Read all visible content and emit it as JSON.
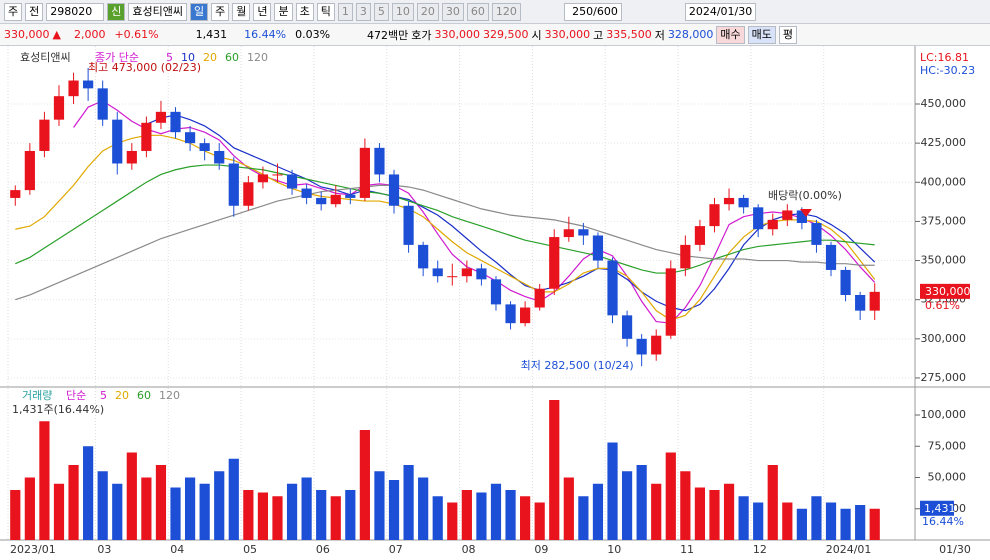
{
  "toolbar": {
    "row1": [
      "주",
      "전",
      "298020",
      "신",
      "효성티앤씨",
      "일",
      "주",
      "월",
      "년",
      "분",
      "초",
      "틱",
      "1",
      "3",
      "5",
      "10",
      "20",
      "30",
      "60",
      "120",
      "250/600",
      "2024/01/30"
    ],
    "row2": [
      "330,000",
      "▲",
      "2,000",
      "+0.61%",
      "1,431",
      "16.44%",
      "0.03%",
      "472백만",
      "호가",
      "330,000",
      "329,500",
      "시",
      "330,000",
      "고",
      "335,500",
      "저",
      "328,000",
      "매수",
      "매도",
      "평"
    ]
  },
  "chart_data": {
    "type": "candlestick",
    "name": "효성티앤씨",
    "ma_label": "종가 단순",
    "up_color": "#e8131c",
    "down_color": "#1c4fd6",
    "categories": [
      "2023/01",
      null,
      null,
      null,
      null,
      null,
      "03",
      null,
      null,
      null,
      null,
      "04",
      null,
      null,
      null,
      null,
      "05",
      null,
      null,
      null,
      null,
      "06",
      null,
      null,
      null,
      null,
      "07",
      null,
      null,
      null,
      null,
      "08",
      null,
      null,
      null,
      null,
      "09",
      null,
      null,
      null,
      null,
      "10",
      null,
      null,
      null,
      null,
      "11",
      null,
      null,
      null,
      null,
      "12",
      null,
      null,
      null,
      null,
      "2024/01",
      null,
      null,
      null
    ],
    "last_label": "01/30",
    "candles": {
      "open": [
        390000,
        395000,
        420000,
        440000,
        455000,
        465000,
        460000,
        440000,
        412000,
        420000,
        438000,
        445000,
        432000,
        425000,
        420000,
        412000,
        385000,
        400000,
        405000,
        405000,
        396000,
        390000,
        386000,
        392000,
        390000,
        422000,
        405000,
        385000,
        360000,
        345000,
        340000,
        340000,
        345000,
        338000,
        322000,
        310000,
        320000,
        332000,
        365000,
        370000,
        366000,
        350000,
        315000,
        300000,
        290000,
        302000,
        345000,
        360000,
        372000,
        386000,
        390000,
        384000,
        370000,
        376000,
        382000,
        374000,
        360000,
        344000,
        328000,
        318000
      ],
      "high": [
        398000,
        425000,
        445000,
        462000,
        470000,
        473000,
        465000,
        445000,
        425000,
        442000,
        452000,
        448000,
        436000,
        428000,
        425000,
        416000,
        404000,
        410000,
        412000,
        408000,
        399000,
        394000,
        398000,
        396000,
        428000,
        425000,
        408000,
        388000,
        362000,
        350000,
        348000,
        350000,
        348000,
        340000,
        324000,
        324000,
        335000,
        370000,
        378000,
        374000,
        368000,
        352000,
        318000,
        303000,
        306000,
        350000,
        366000,
        376000,
        390000,
        396000,
        392000,
        386000,
        380000,
        386000,
        384000,
        376000,
        362000,
        346000,
        330000,
        335500
      ],
      "low": [
        385000,
        392000,
        416000,
        436000,
        450000,
        452000,
        436000,
        405000,
        408000,
        416000,
        434000,
        428000,
        420000,
        414000,
        408000,
        378000,
        382000,
        396000,
        400000,
        392000,
        386000,
        382000,
        384000,
        386000,
        388000,
        400000,
        380000,
        355000,
        340000,
        336000,
        334000,
        336000,
        334000,
        318000,
        306000,
        308000,
        318000,
        328000,
        362000,
        360000,
        345000,
        310000,
        295000,
        282500,
        286000,
        300000,
        340000,
        356000,
        368000,
        382000,
        380000,
        365000,
        366000,
        372000,
        370000,
        355000,
        340000,
        324000,
        312000,
        312000
      ],
      "close": [
        395000,
        420000,
        440000,
        455000,
        465000,
        460000,
        440000,
        412000,
        420000,
        438000,
        445000,
        432000,
        425000,
        420000,
        412000,
        385000,
        400000,
        405000,
        405000,
        396000,
        390000,
        386000,
        392000,
        390000,
        422000,
        405000,
        385000,
        360000,
        345000,
        340000,
        340000,
        345000,
        338000,
        322000,
        310000,
        320000,
        332000,
        365000,
        370000,
        366000,
        350000,
        315000,
        300000,
        290000,
        302000,
        345000,
        360000,
        372000,
        386000,
        390000,
        384000,
        370000,
        376000,
        382000,
        374000,
        360000,
        344000,
        328000,
        318000,
        330000
      ]
    },
    "series": [
      {
        "name": "5",
        "color": "#d01ad0",
        "values": [
          null,
          null,
          null,
          null,
          435000,
          448000,
          452000,
          446000,
          439000,
          434000,
          431000,
          434000,
          435000,
          432000,
          427000,
          417000,
          409000,
          404000,
          401000,
          398000,
          399000,
          396000,
          393000,
          392000,
          398000,
          399000,
          398000,
          393000,
          381000,
          367000,
          354000,
          346000,
          342000,
          337000,
          331000,
          327000,
          324000,
          330000,
          340000,
          351000,
          357000,
          353000,
          340000,
          324000,
          311000,
          310000,
          320000,
          334000,
          353000,
          373000,
          378000,
          380000,
          381000,
          380000,
          377000,
          373000,
          366000,
          357000,
          346000,
          336000
        ]
      },
      {
        "name": "10",
        "color": "#1a2fc8",
        "values": [
          null,
          null,
          null,
          null,
          null,
          null,
          null,
          null,
          null,
          437000,
          441000,
          443000,
          440000,
          436000,
          430000,
          422000,
          418000,
          414000,
          410000,
          406000,
          402000,
          397000,
          395000,
          392000,
          395000,
          393000,
          391000,
          389000,
          384000,
          379000,
          372000,
          364000,
          356000,
          349000,
          341000,
          334000,
          331000,
          333000,
          336000,
          340000,
          345000,
          344000,
          338000,
          330000,
          324000,
          320000,
          318000,
          322000,
          332000,
          345000,
          360000,
          370000,
          376000,
          379000,
          380000,
          378000,
          373000,
          367000,
          358000,
          349000
        ]
      },
      {
        "name": "20",
        "color": "#e0a800",
        "values": [
          370000,
          372000,
          378000,
          388000,
          398000,
          410000,
          420000,
          425000,
          428000,
          430000,
          430000,
          428000,
          425000,
          420000,
          416000,
          414000,
          410000,
          405000,
          400000,
          396000,
          393000,
          391000,
          390000,
          389000,
          388000,
          388000,
          386000,
          383000,
          378000,
          370000,
          362000,
          355000,
          350000,
          345000,
          340000,
          335000,
          330000,
          330000,
          335000,
          342000,
          345000,
          345000,
          340000,
          330000,
          318000,
          312000,
          315000,
          325000,
          340000,
          355000,
          365000,
          372000,
          375000,
          376000,
          376000,
          375000,
          370000,
          362000,
          350000,
          338000
        ]
      },
      {
        "name": "60",
        "color": "#2aa02a",
        "values": [
          348000,
          352000,
          358000,
          364000,
          370000,
          376000,
          382000,
          388000,
          394000,
          400000,
          405000,
          408000,
          410000,
          411000,
          411000,
          410000,
          409000,
          408000,
          406000,
          404000,
          402000,
          400000,
          398000,
          396000,
          394000,
          393000,
          391000,
          388000,
          385000,
          382000,
          378000,
          375000,
          372000,
          369000,
          366000,
          363000,
          361000,
          359000,
          357000,
          355000,
          353000,
          350000,
          347000,
          344000,
          342000,
          342000,
          344000,
          347000,
          351000,
          354000,
          357000,
          359000,
          360000,
          361000,
          362000,
          363000,
          363000,
          362000,
          361000,
          360000
        ]
      },
      {
        "name": "120",
        "color": "#8a8a8a",
        "values": [
          325000,
          328000,
          332000,
          336000,
          340000,
          344000,
          348000,
          352000,
          356000,
          360000,
          364000,
          367000,
          370000,
          373000,
          376000,
          379000,
          382000,
          385000,
          388000,
          390000,
          392000,
          394000,
          395000,
          396000,
          397000,
          398000,
          398000,
          397000,
          395000,
          392000,
          389000,
          386000,
          383000,
          381000,
          379000,
          378000,
          377000,
          376000,
          374000,
          372000,
          369000,
          366000,
          363000,
          360000,
          357000,
          355000,
          353000,
          352000,
          351000,
          351000,
          351000,
          350000,
          350000,
          350000,
          349000,
          349000,
          348000,
          348000,
          347000,
          347000
        ]
      }
    ],
    "ylim": [
      270500,
      484500
    ],
    "yticks": [
      {
        "value": 275000,
        "label": "275,000"
      },
      {
        "value": 300000,
        "label": "300,000"
      },
      {
        "value": 325000,
        "label": "325,000"
      },
      {
        "value": 350000,
        "label": "350,000"
      },
      {
        "value": 375000,
        "label": "375,000"
      },
      {
        "value": 400000,
        "label": "400,000"
      },
      {
        "value": 425000,
        "label": "425,000"
      },
      {
        "value": 450000,
        "label": "450,000"
      }
    ],
    "annotations": {
      "high": "최고 473,000 (02/23)",
      "low": "최저 282,500 (10/24)",
      "dividend": "배당락(0.00%)",
      "lc": "LC:16.81",
      "hc": "HC:-30.23",
      "last_price": "330,000",
      "last_change": "0.61%"
    },
    "volume": {
      "title": "거래량",
      "ma_label": "단순",
      "ma_names": [
        {
          "name": "5",
          "color": "#d01ad0"
        },
        {
          "name": "20",
          "color": "#e0a800"
        },
        {
          "name": "60",
          "color": "#2aa02a"
        },
        {
          "name": "120",
          "color": "#8a8a8a"
        }
      ],
      "info": "1,431주(16.44%)",
      "last_volume": "1,431",
      "last_ratio": "16.44%",
      "values": [
        40000,
        50000,
        95000,
        45000,
        60000,
        75000,
        55000,
        45000,
        70000,
        50000,
        60000,
        42000,
        50000,
        45000,
        55000,
        65000,
        40000,
        38000,
        35000,
        45000,
        50000,
        40000,
        35000,
        40000,
        88000,
        55000,
        48000,
        60000,
        50000,
        35000,
        30000,
        40000,
        38000,
        45000,
        40000,
        35000,
        30000,
        112000,
        50000,
        35000,
        45000,
        78000,
        55000,
        60000,
        45000,
        70000,
        55000,
        42000,
        40000,
        45000,
        35000,
        30000,
        60000,
        30000,
        25000,
        35000,
        30000,
        25000,
        28000,
        25000
      ],
      "ylim": [
        0,
        120000
      ],
      "yticks": [
        {
          "value": 25000,
          "label": "25,000"
        },
        {
          "value": 50000,
          "label": "50,000"
        },
        {
          "value": 75000,
          "label": "75,000"
        },
        {
          "value": 100000,
          "label": "100,000"
        }
      ]
    }
  }
}
